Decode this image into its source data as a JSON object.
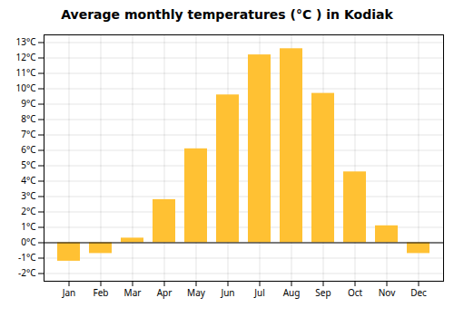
{
  "chart_data": {
    "type": "bar",
    "title": "Average monthly temperatures (°C ) in Kodiak",
    "categories": [
      "Jan",
      "Feb",
      "Mar",
      "Apr",
      "May",
      "Jun",
      "Jul",
      "Aug",
      "Sep",
      "Oct",
      "Nov",
      "Dec"
    ],
    "values": [
      -1.2,
      -0.7,
      0.3,
      2.8,
      6.1,
      9.6,
      12.2,
      12.6,
      9.7,
      4.6,
      1.1,
      -0.7
    ],
    "color": "#FFC133",
    "ylim": [
      -2.5,
      13.5
    ],
    "yticks": [
      {
        "value": -2,
        "label": "-2°C"
      },
      {
        "value": -1,
        "label": "-1°C"
      },
      {
        "value": 0,
        "label": "0°C"
      },
      {
        "value": 1,
        "label": "1°C"
      },
      {
        "value": 2,
        "label": "2°C"
      },
      {
        "value": 3,
        "label": "3°C"
      },
      {
        "value": 4,
        "label": "4°C"
      },
      {
        "value": 5,
        "label": "5°C"
      },
      {
        "value": 6,
        "label": "6°C"
      },
      {
        "value": 7,
        "label": "7°C"
      },
      {
        "value": 8,
        "label": "8°C"
      },
      {
        "value": 9,
        "label": "9°C"
      },
      {
        "value": 10,
        "label": "10°C"
      },
      {
        "value": 11,
        "label": "11°C"
      },
      {
        "value": 12,
        "label": "12°C"
      },
      {
        "value": 13,
        "label": "13°C"
      }
    ],
    "grid": true
  }
}
